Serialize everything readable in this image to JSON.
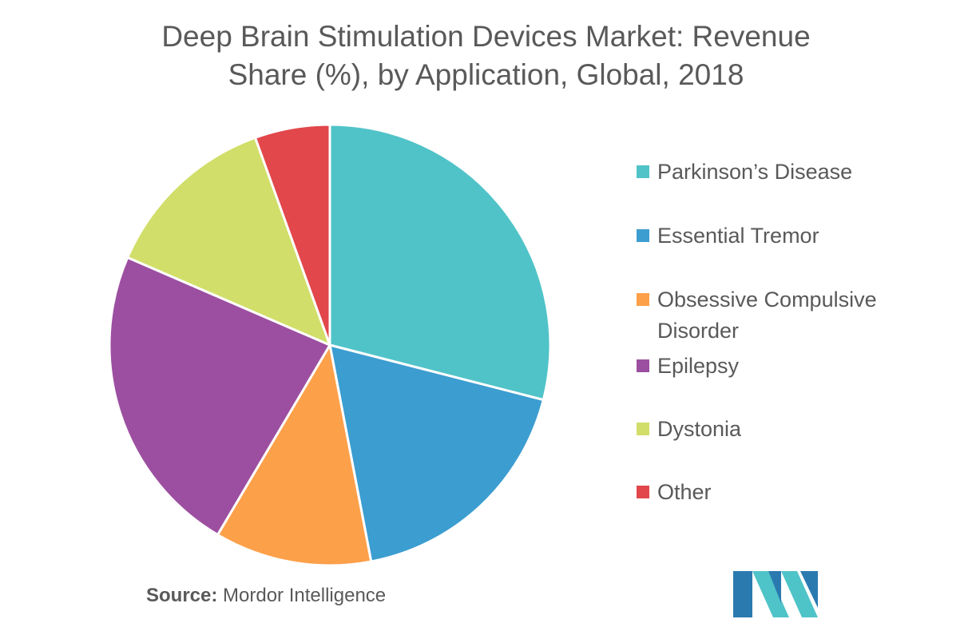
{
  "title_line1": "Deep Brain Stimulation Devices Market: Revenue",
  "title_line2": "Share (%), by Application, Global, 2018",
  "source_label": "Source:",
  "source_text": "Mordor Intelligence",
  "logo_icon": "mordor-intelligence-logo-icon",
  "colors": {
    "text": "#595959",
    "logo_dark": "#2a7ab0",
    "logo_light": "#4fc4c8"
  },
  "chart_data": {
    "type": "pie",
    "categories": [
      "Parkinson’s Disease",
      "Essential Tremor",
      "Obsessive Compulsive Disorder",
      "Epilepsy",
      "Dystonia",
      "Other"
    ],
    "values": [
      29,
      18,
      11.5,
      23,
      13,
      5.5
    ],
    "colors": [
      "#50c3c8",
      "#3c9dd0",
      "#fda04a",
      "#9c4fa0",
      "#d1de69",
      "#e1474b"
    ],
    "start_angle_deg": 0,
    "direction": "clockwise",
    "legend_position": "right"
  }
}
